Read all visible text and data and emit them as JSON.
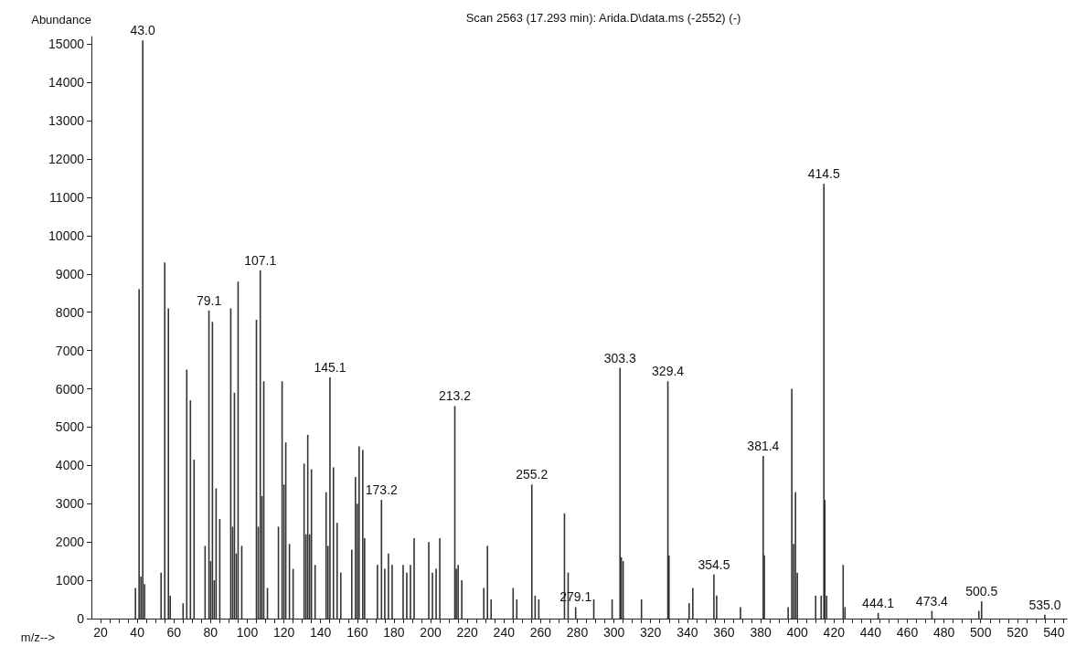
{
  "chart_data": {
    "type": "bar",
    "title": "Scan 2563 (17.293 min): Arida.D\\data.ms (-2552) (-)",
    "xlabel": "m/z-->",
    "ylabel": "Abundance",
    "color": "#333333",
    "x": [
      39,
      41,
      42,
      43.0,
      44,
      53,
      55,
      57,
      58,
      65,
      67,
      69,
      71,
      77,
      79.1,
      80,
      81,
      82,
      83,
      85,
      91,
      92,
      93,
      94,
      95,
      97,
      105,
      106,
      107.1,
      108,
      109,
      111,
      117,
      119,
      120,
      121,
      123,
      125,
      131,
      132,
      133,
      134,
      135,
      137,
      143,
      144,
      145.1,
      147,
      149,
      151,
      157,
      159,
      160,
      161,
      163,
      164,
      171,
      173.2,
      175,
      177,
      179,
      185,
      187,
      189,
      191,
      199,
      201,
      203,
      205,
      213.2,
      214,
      215,
      217,
      229,
      231,
      233,
      245,
      247,
      255.2,
      257,
      259,
      273,
      275,
      279.1,
      289,
      299,
      303.3,
      304,
      305,
      315,
      329.4,
      330,
      341,
      343,
      354.5,
      356,
      369,
      381.4,
      382,
      395,
      397,
      398,
      399,
      400,
      410,
      413,
      414.5,
      415,
      416,
      425,
      426,
      444.1,
      473.4,
      499,
      500.5,
      535.0
    ],
    "values": [
      800,
      8600,
      1100,
      15100,
      900,
      1200,
      9300,
      8100,
      600,
      400,
      6500,
      5700,
      4150,
      1900,
      8050,
      1500,
      7750,
      1000,
      3400,
      2600,
      8100,
      2400,
      5900,
      1700,
      8800,
      1900,
      7800,
      2400,
      9100,
      3200,
      6200,
      800,
      2400,
      6200,
      3500,
      4600,
      1950,
      1300,
      4050,
      2200,
      4800,
      2200,
      3900,
      1400,
      3300,
      1900,
      6300,
      3950,
      2500,
      1200,
      1800,
      3700,
      3000,
      4500,
      4400,
      2100,
      1400,
      3100,
      1300,
      1700,
      1400,
      1400,
      1200,
      1400,
      2100,
      2000,
      1200,
      1300,
      2100,
      5550,
      1300,
      1400,
      1000,
      800,
      1900,
      500,
      800,
      500,
      3500,
      600,
      500,
      2750,
      1200,
      300,
      500,
      500,
      6550,
      1600,
      1500,
      500,
      6200,
      1650,
      400,
      800,
      1150,
      600,
      300,
      4250,
      1650,
      300,
      6000,
      1950,
      3300,
      1200,
      600,
      600,
      11350,
      3100,
      600,
      1400,
      300,
      150,
      200,
      200,
      450,
      100
    ],
    "annotations": [
      {
        "text": "43.0",
        "x": 43.0,
        "y": 15100
      },
      {
        "text": "79.1",
        "x": 79.1,
        "y": 8050
      },
      {
        "text": "107.1",
        "x": 107.1,
        "y": 9100
      },
      {
        "text": "145.1",
        "x": 145.1,
        "y": 6300
      },
      {
        "text": "173.2",
        "x": 173.2,
        "y": 3100
      },
      {
        "text": "213.2",
        "x": 213.2,
        "y": 5550
      },
      {
        "text": "255.2",
        "x": 255.2,
        "y": 3500
      },
      {
        "text": "279.1",
        "x": 279.1,
        "y": 300
      },
      {
        "text": "303.3",
        "x": 303.3,
        "y": 6550
      },
      {
        "text": "329.4",
        "x": 329.4,
        "y": 6200
      },
      {
        "text": "354.5",
        "x": 354.5,
        "y": 1150
      },
      {
        "text": "381.4",
        "x": 381.4,
        "y": 4250
      },
      {
        "text": "414.5",
        "x": 414.5,
        "y": 11350
      },
      {
        "text": "444.1",
        "x": 444.1,
        "y": 150
      },
      {
        "text": "473.4",
        "x": 473.4,
        "y": 200
      },
      {
        "text": "500.5",
        "x": 500.5,
        "y": 450
      },
      {
        "text": "535.0",
        "x": 535.0,
        "y": 100
      }
    ],
    "xlim": [
      15,
      547
    ],
    "xticks": [
      20,
      {
        "value": 25,
        "label": null
      },
      {
        "value": 30,
        "label": null
      },
      {
        "value": 35,
        "label": null
      },
      40,
      {
        "value": 45,
        "label": null
      },
      {
        "value": 50,
        "label": null
      },
      {
        "value": 55,
        "label": null
      },
      60,
      {
        "value": 65,
        "label": null
      },
      {
        "value": 70,
        "label": null
      },
      {
        "value": 75,
        "label": null
      },
      80,
      {
        "value": 85,
        "label": null
      },
      {
        "value": 90,
        "label": null
      },
      {
        "value": 95,
        "label": null
      },
      100,
      {
        "value": 105,
        "label": null
      },
      {
        "value": 110,
        "label": null
      },
      {
        "value": 115,
        "label": null
      },
      120,
      {
        "value": 125,
        "label": null
      },
      {
        "value": 130,
        "label": null
      },
      {
        "value": 135,
        "label": null
      },
      140,
      {
        "value": 145,
        "label": null
      },
      {
        "value": 150,
        "label": null
      },
      {
        "value": 155,
        "label": null
      },
      160,
      {
        "value": 165,
        "label": null
      },
      {
        "value": 170,
        "label": null
      },
      {
        "value": 175,
        "label": null
      },
      180,
      {
        "value": 185,
        "label": null
      },
      {
        "value": 190,
        "label": null
      },
      {
        "value": 195,
        "label": null
      },
      200,
      {
        "value": 205,
        "label": null
      },
      {
        "value": 210,
        "label": null
      },
      {
        "value": 215,
        "label": null
      },
      220,
      {
        "value": 225,
        "label": null
      },
      {
        "value": 230,
        "label": null
      },
      {
        "value": 235,
        "label": null
      },
      240,
      {
        "value": 245,
        "label": null
      },
      {
        "value": 250,
        "label": null
      },
      {
        "value": 255,
        "label": null
      },
      260,
      {
        "value": 265,
        "label": null
      },
      {
        "value": 270,
        "label": null
      },
      {
        "value": 275,
        "label": null
      },
      280,
      {
        "value": 285,
        "label": null
      },
      {
        "value": 290,
        "label": null
      },
      {
        "value": 295,
        "label": null
      },
      300,
      {
        "value": 305,
        "label": null
      },
      {
        "value": 310,
        "label": null
      },
      {
        "value": 315,
        "label": null
      },
      320,
      {
        "value": 325,
        "label": null
      },
      {
        "value": 330,
        "label": null
      },
      {
        "value": 335,
        "label": null
      },
      340,
      {
        "value": 345,
        "label": null
      },
      {
        "value": 350,
        "label": null
      },
      {
        "value": 355,
        "label": null
      },
      360,
      {
        "value": 365,
        "label": null
      },
      {
        "value": 370,
        "label": null
      },
      {
        "value": 375,
        "label": null
      },
      380,
      {
        "value": 385,
        "label": null
      },
      {
        "value": 390,
        "label": null
      },
      {
        "value": 395,
        "label": null
      },
      400,
      {
        "value": 405,
        "label": null
      },
      {
        "value": 410,
        "label": null
      },
      {
        "value": 415,
        "label": null
      },
      420,
      {
        "value": 425,
        "label": null
      },
      {
        "value": 430,
        "label": null
      },
      {
        "value": 435,
        "label": null
      },
      440,
      {
        "value": 445,
        "label": null
      },
      {
        "value": 450,
        "label": null
      },
      {
        "value": 455,
        "label": null
      },
      460,
      {
        "value": 465,
        "label": null
      },
      {
        "value": 470,
        "label": null
      },
      {
        "value": 475,
        "label": null
      },
      480,
      {
        "value": 485,
        "label": null
      },
      {
        "value": 490,
        "label": null
      },
      {
        "value": 495,
        "label": null
      },
      500,
      {
        "value": 505,
        "label": null
      },
      {
        "value": 510,
        "label": null
      },
      {
        "value": 515,
        "label": null
      },
      520,
      {
        "value": 525,
        "label": null
      },
      {
        "value": 530,
        "label": null
      },
      {
        "value": 535,
        "label": null
      },
      540,
      {
        "value": 545,
        "label": null
      }
    ],
    "ylim": [
      0,
      15200
    ],
    "yticks": [
      0,
      1000,
      2000,
      3000,
      4000,
      5000,
      6000,
      7000,
      8000,
      9000,
      10000,
      11000,
      12000,
      13000,
      14000,
      15000
    ]
  }
}
